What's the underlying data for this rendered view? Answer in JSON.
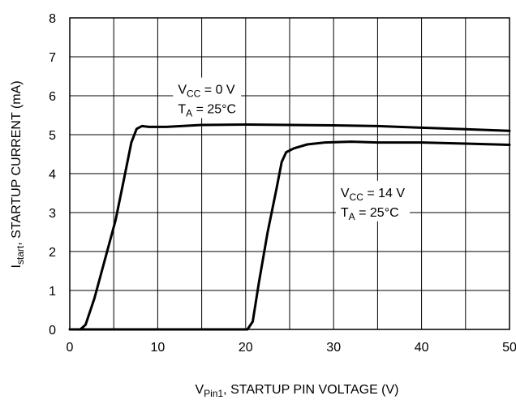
{
  "chart_data": {
    "type": "line",
    "x_ticks": [
      "0",
      "10",
      "20",
      "30",
      "40",
      "50"
    ],
    "y_ticks": [
      "0",
      "1",
      "2",
      "3",
      "4",
      "5",
      "6",
      "7",
      "8"
    ],
    "xlim": [
      0,
      50
    ],
    "ylim": [
      0,
      8
    ],
    "grid": true,
    "grid_x_step": 5,
    "grid_y_step": 1,
    "xlabel": {
      "main": "V",
      "sub": "Pin1",
      "rest": ", STARTUP PIN VOLTAGE (V)"
    },
    "ylabel": {
      "main": "I",
      "sub": "start",
      "rest": ", STARTUP CURRENT (mA)"
    },
    "series": [
      {
        "color": "#000000",
        "points": [
          [
            1.2,
            0
          ],
          [
            1.8,
            0.12
          ],
          [
            2.8,
            0.8
          ],
          [
            4.0,
            1.8
          ],
          [
            5.2,
            2.8
          ],
          [
            6.2,
            3.9
          ],
          [
            7.0,
            4.8
          ],
          [
            7.6,
            5.15
          ],
          [
            8.2,
            5.22
          ],
          [
            9.0,
            5.2
          ],
          [
            11,
            5.2
          ],
          [
            15,
            5.25
          ],
          [
            20,
            5.26
          ],
          [
            25,
            5.25
          ],
          [
            30,
            5.24
          ],
          [
            35,
            5.22
          ],
          [
            40,
            5.18
          ],
          [
            45,
            5.14
          ],
          [
            50,
            5.1
          ]
        ]
      },
      {
        "color": "#000000",
        "points": [
          [
            0,
            0
          ],
          [
            20.2,
            0
          ],
          [
            20.8,
            0.2
          ],
          [
            21.5,
            1.2
          ],
          [
            22.5,
            2.5
          ],
          [
            23.5,
            3.6
          ],
          [
            24.1,
            4.3
          ],
          [
            24.6,
            4.55
          ],
          [
            25.5,
            4.65
          ],
          [
            27,
            4.75
          ],
          [
            29,
            4.8
          ],
          [
            32,
            4.82
          ],
          [
            35,
            4.8
          ],
          [
            40,
            4.8
          ],
          [
            45,
            4.77
          ],
          [
            50,
            4.74
          ]
        ]
      }
    ],
    "annotations": [
      {
        "line1_main": "V",
        "line1_sub": "CC",
        "line1_rest": " = 0 V",
        "line2_main": "T",
        "line2_sub": "A",
        "line2_rest": " = 25°C",
        "x": 12.3,
        "y": 6.05
      },
      {
        "line1_main": "V",
        "line1_sub": "CC",
        "line1_rest": " = 14 V",
        "line2_main": "T",
        "line2_sub": "A",
        "line2_rest": " = 25°C",
        "x": 30.8,
        "y": 3.4
      }
    ]
  }
}
